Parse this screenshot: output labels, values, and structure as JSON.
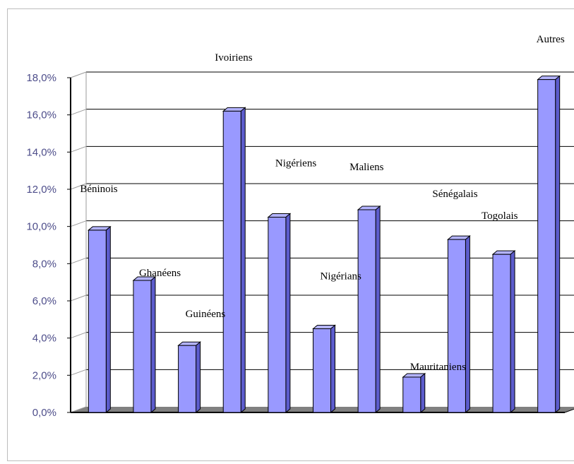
{
  "chart_data": {
    "type": "bar",
    "style": "3d-column",
    "categories": [
      "Béninois",
      "Ghanéens",
      "Guinéens",
      "Ivoiriens",
      "Nigériens",
      "Nigérians",
      "Maliens",
      "Mauritaniens",
      "Sénégalais",
      "Togolais",
      "Autres"
    ],
    "values": [
      9.8,
      7.1,
      3.6,
      16.2,
      10.5,
      4.5,
      10.9,
      1.9,
      9.3,
      8.5,
      17.9
    ],
    "ylim": [
      0,
      18
    ],
    "y_ticks": [
      "0,0%",
      "2,0%",
      "4,0%",
      "6,0%",
      "8,0%",
      "10,0%",
      "12,0%",
      "14,0%",
      "16,0%",
      "18,0%"
    ],
    "grid": true,
    "legend": "none",
    "colors": {
      "bar_front": "#9999ff",
      "bar_side": "#5c5ccc",
      "bar_top": "#b3b3ff",
      "floor": "#808080",
      "grid": "#000000",
      "tick_text": "#4d4d8a"
    }
  }
}
